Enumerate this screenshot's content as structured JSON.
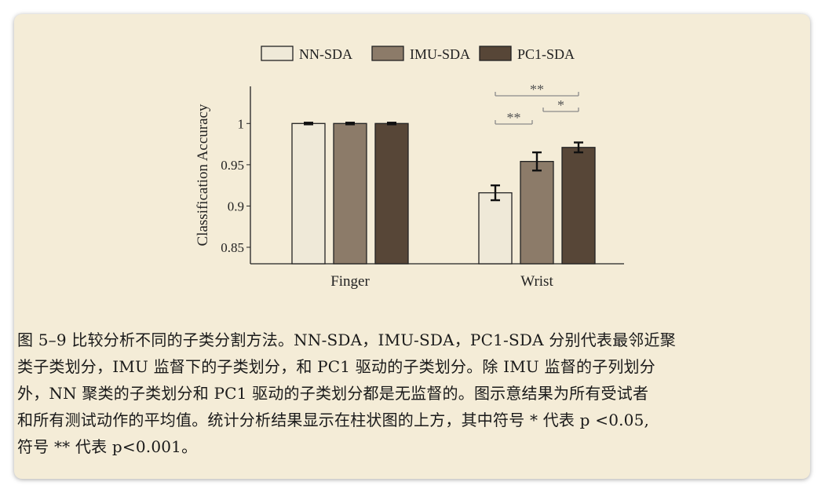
{
  "chart_data": {
    "type": "bar",
    "categories": [
      "Finger",
      "Wrist"
    ],
    "ylabel": "Classification Accuracy",
    "xlabel": "",
    "ylim": [
      0.83,
      1.045
    ],
    "yticks": [
      0.85,
      0.9,
      0.95,
      1
    ],
    "ytick_labels": [
      "0.85",
      "0.9",
      "0.95",
      "1"
    ],
    "legend_position": "top",
    "grid": false,
    "series": [
      {
        "name": "NN-SDA",
        "color": "#efe9d8",
        "values": [
          1.0,
          0.916
        ],
        "errors": [
          0.001,
          0.009
        ]
      },
      {
        "name": "IMU-SDA",
        "color": "#8c7b69",
        "values": [
          1.0,
          0.954
        ],
        "errors": [
          0.001,
          0.011
        ]
      },
      {
        "name": "PC1-SDA",
        "color": "#574637",
        "values": [
          1.0,
          0.971
        ],
        "errors": [
          0.001,
          0.006
        ]
      }
    ],
    "significance": [
      {
        "category": "Wrist",
        "from_series": 0,
        "to_series": 1,
        "label": "**"
      },
      {
        "category": "Wrist",
        "from_series": 1,
        "to_series": 2,
        "label": "*"
      },
      {
        "category": "Wrist",
        "from_series": 0,
        "to_series": 2,
        "label": "**"
      }
    ]
  },
  "caption": {
    "lines": [
      "图 5–9 比较分析不同的子类分割方法。NN-SDA，IMU-SDA，PC1-SDA 分别代表最邻近聚",
      "类子类划分，IMU 监督下的子类划分，和 PC1 驱动的子类划分。除 IMU 监督的子列划分",
      "外，NN 聚类的子类划分和 PC1 驱动的子类划分都是无监督的。图示意结果为所有受试者",
      "和所有测试动作的平均值。统计分析结果显示在柱状图的上方，其中符号 * 代表 p <0.05,",
      "符号 ** 代表 p<0.001。"
    ]
  }
}
